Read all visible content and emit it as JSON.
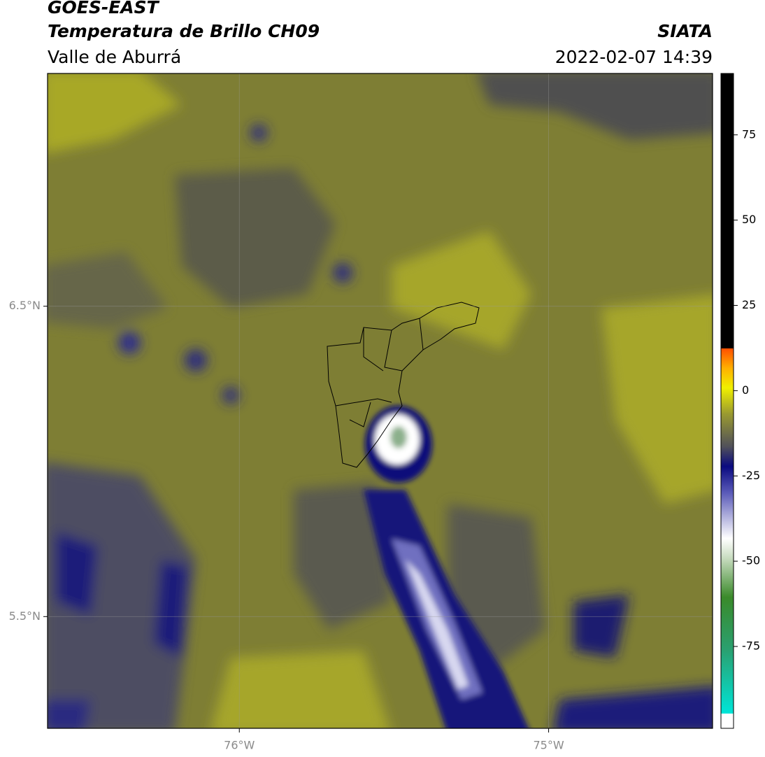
{
  "header": {
    "title": "GOES-EAST",
    "subtitle": "Temperatura de Brillo CH09",
    "source": "SIATA",
    "region": "Valle de Aburrá",
    "datetime": "2022-02-07 14:39"
  },
  "map": {
    "lon_range": [
      -76.62,
      -74.47
    ],
    "lat_range": [
      5.14,
      7.25
    ],
    "lat_lines": [
      {
        "value": 6.5,
        "label": "6.5°N"
      },
      {
        "value": 5.5,
        "label": "5.5°N"
      }
    ],
    "lon_lines": [
      {
        "value": -76,
        "label": "76°W"
      },
      {
        "value": -75,
        "label": "75°W"
      }
    ]
  },
  "colorbar": {
    "range": [
      -99,
      93
    ],
    "ticks": [
      75,
      50,
      25,
      0,
      -25,
      -50,
      -75
    ]
  }
}
